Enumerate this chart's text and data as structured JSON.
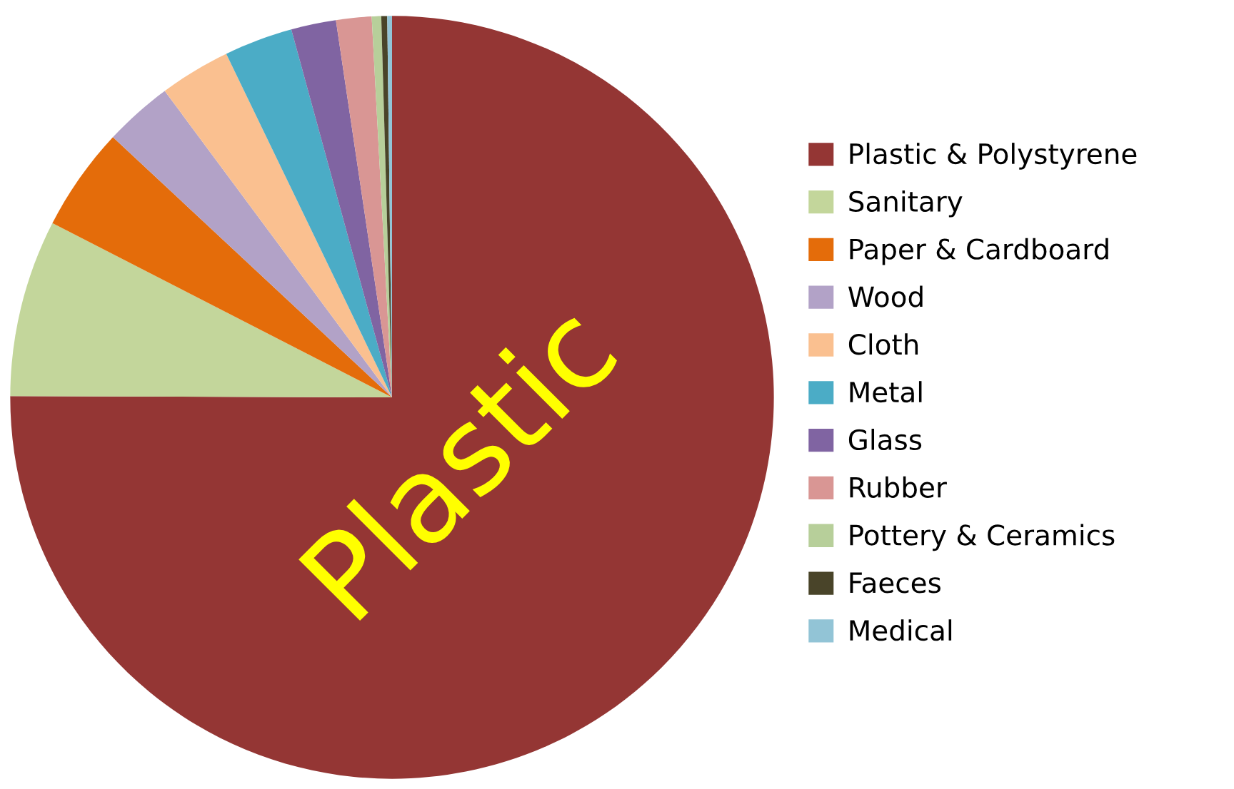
{
  "chart_data": {
    "type": "pie",
    "categories": [
      "Plastic & Polystyrene",
      "Sanitary",
      "Paper & Cardboard",
      "Wood",
      "Cloth",
      "Metal",
      "Glass",
      "Rubber",
      "Pottery & Ceramics",
      "Faeces",
      "Medical"
    ],
    "values": [
      75.05,
      7.5,
      4.4,
      2.9,
      3.0,
      2.9,
      1.9,
      1.5,
      0.4,
      0.25,
      0.2
    ],
    "colors": [
      "#943634",
      "#c3d69b",
      "#e46c0a",
      "#b2a2c7",
      "#fac090",
      "#4bacc6",
      "#8064a2",
      "#d99694",
      "#b7cf9a",
      "#494429",
      "#92c4d6"
    ],
    "annotations": [
      "Plastic"
    ],
    "legend": "right"
  }
}
